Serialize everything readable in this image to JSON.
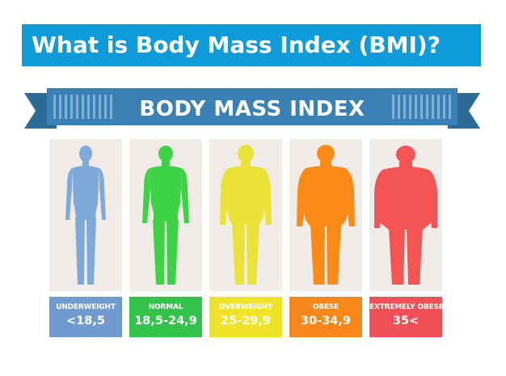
{
  "header": {
    "title": "What is Body Mass Index (BMI)?"
  },
  "banner": {
    "title": "BODY MASS INDEX"
  },
  "colors": {
    "header_bg": "#0f9bda",
    "banner": "#3a80b4",
    "banner_dark": "#2c6a98",
    "card_bg": "#f1ebe8"
  },
  "categories": [
    {
      "name": "UNDERWEIGHT",
      "range": "<18,5",
      "color": "#7fa9d9",
      "label_bg": "#6f9bd1",
      "icon": "slim-body-silhouette-icon"
    },
    {
      "name": "NORMAL",
      "range": "18,5-24,9",
      "color": "#3ed247",
      "label_bg": "#33c24a",
      "icon": "normal-body-silhouette-icon"
    },
    {
      "name": "OVERWEIGHT",
      "range": "25-29,9",
      "color": "#eae239",
      "label_bg": "#efe227",
      "icon": "overweight-body-silhouette-icon"
    },
    {
      "name": "OBESE",
      "range": "30-34,9",
      "color": "#fb8a17",
      "label_bg": "#f7871b",
      "icon": "obese-body-silhouette-icon"
    },
    {
      "name": "EXTREMELY OBESE",
      "range": "35<",
      "color": "#f35555",
      "label_bg": "#ef4f56",
      "icon": "extremely-obese-body-silhouette-icon"
    }
  ]
}
